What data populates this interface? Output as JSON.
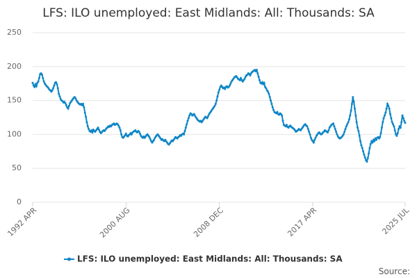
{
  "chart_data": {
    "type": "line",
    "title": "LFS: ILO unemployed: East Midlands: All: Thousands: SA",
    "source": "Source:",
    "categories": [
      "1992 APR",
      null,
      null,
      null,
      null,
      null,
      null,
      null,
      null,
      null,
      null,
      null,
      null,
      null,
      null,
      null,
      null,
      null,
      null,
      null,
      null,
      null,
      null,
      null,
      null,
      null,
      null,
      null,
      null,
      null,
      null,
      null,
      null,
      null,
      null,
      null,
      null,
      null,
      null,
      null,
      null,
      null,
      null,
      null,
      null,
      null,
      null,
      null,
      null,
      null,
      null,
      null,
      null,
      null,
      null,
      null,
      null,
      null,
      null,
      null,
      null,
      null,
      null,
      null,
      null,
      null,
      null,
      null,
      null,
      null,
      null,
      null,
      null,
      null,
      null,
      null,
      null,
      null,
      null,
      null,
      null,
      null,
      null,
      null,
      null,
      null,
      null,
      null,
      null,
      null,
      null,
      null,
      null,
      null,
      null,
      null,
      null,
      null,
      null,
      null,
      "2000 AUG",
      null,
      null,
      null,
      null,
      null,
      null,
      null,
      null,
      null,
      null,
      null,
      null,
      null,
      null,
      null,
      null,
      null,
      null,
      null,
      null,
      null,
      null,
      null,
      null,
      null,
      null,
      null,
      null,
      null,
      null,
      null,
      null,
      null,
      null,
      null,
      null,
      null,
      null,
      null,
      null,
      null,
      null,
      null,
      null,
      null,
      null,
      null,
      null,
      null,
      null,
      null,
      null,
      null,
      null,
      null,
      null,
      null,
      null,
      null,
      null,
      null,
      null,
      null,
      null,
      null,
      null,
      null,
      null,
      null,
      null,
      null,
      null,
      null,
      null,
      null,
      null,
      null,
      null,
      null,
      null,
      null,
      null,
      null,
      null,
      null,
      null,
      null,
      null,
      null,
      null,
      null,
      null,
      null,
      null,
      null,
      null,
      null,
      null,
      null,
      "2008 DEC",
      null,
      null,
      null,
      null,
      null,
      null,
      null,
      null,
      null,
      null,
      null,
      null,
      null,
      null,
      null,
      null,
      null,
      null,
      null,
      null,
      null,
      null,
      null,
      null,
      null,
      null,
      null,
      null,
      null,
      null,
      null,
      null,
      null,
      null,
      null,
      null,
      null,
      null,
      null,
      null,
      null,
      null,
      null,
      null,
      null,
      null,
      null,
      null,
      null,
      null,
      null,
      null,
      null,
      null,
      null,
      null,
      null,
      null,
      null,
      null,
      null,
      null,
      null,
      null,
      null,
      null,
      null,
      null,
      null,
      null,
      null,
      null,
      null,
      null,
      null,
      null,
      null,
      null,
      null,
      null,
      null,
      null,
      null,
      null,
      null,
      null,
      null,
      null,
      null,
      null,
      null,
      null,
      null,
      null,
      null,
      null,
      null,
      null,
      null,
      "2017 APR",
      null,
      null,
      null,
      null,
      null,
      null,
      null,
      null,
      null,
      null,
      null,
      null,
      null,
      null,
      null,
      null,
      null,
      null,
      null,
      null,
      null,
      null,
      null,
      null,
      null,
      null,
      null,
      null,
      null,
      null,
      null,
      null,
      null,
      null,
      null,
      null,
      null,
      null,
      null,
      null,
      null,
      null,
      null,
      null,
      null,
      null,
      null,
      null,
      null,
      null,
      null,
      null,
      null,
      null,
      null,
      null,
      null,
      null,
      null,
      null,
      null,
      null,
      null,
      null,
      null,
      null,
      null,
      null,
      null,
      null,
      null,
      null,
      null,
      null,
      null,
      null,
      null,
      null,
      null,
      null,
      null,
      null,
      null,
      null,
      null,
      null,
      null,
      null,
      null,
      null,
      null,
      null,
      null,
      null,
      null,
      null,
      null,
      null,
      "2025 JUL"
    ],
    "series": [
      {
        "name": "LFS: ILO unemployed: East Midlands: All: Thousands: SA",
        "color": "#0f86c6",
        "values": [
          176,
          172,
          170,
          174,
          171,
          176,
          178,
          183,
          189,
          190,
          188,
          183,
          178,
          175,
          173,
          171,
          170,
          168,
          166,
          165,
          163,
          165,
          168,
          172,
          176,
          177,
          174,
          168,
          160,
          156,
          152,
          150,
          149,
          147,
          148,
          146,
          143,
          140,
          138,
          142,
          146,
          148,
          150,
          152,
          154,
          155,
          153,
          150,
          148,
          146,
          145,
          144,
          145,
          143,
          145,
          140,
          132,
          126,
          118,
          112,
          108,
          105,
          104,
          106,
          103,
          107,
          105,
          104,
          106,
          108,
          110,
          107,
          104,
          102,
          103,
          105,
          106,
          105,
          107,
          109,
          110,
          112,
          111,
          113,
          112,
          114,
          115,
          116,
          114,
          115,
          116,
          115,
          113,
          110,
          106,
          100,
          96,
          95,
          97,
          99,
          101,
          98,
          97,
          99,
          100,
          102,
          100,
          103,
          104,
          105,
          106,
          104,
          103,
          105,
          104,
          101,
          98,
          96,
          95,
          97,
          95,
          97,
          99,
          100,
          98,
          96,
          93,
          90,
          88,
          90,
          92,
          95,
          97,
          99,
          100,
          98,
          96,
          94,
          92,
          93,
          91,
          90,
          92,
          90,
          88,
          86,
          85,
          87,
          89,
          91,
          90,
          92,
          94,
          96,
          95,
          94,
          96,
          97,
          99,
          98,
          100,
          101,
          100,
          105,
          110,
          115,
          120,
          124,
          128,
          131,
          130,
          128,
          129,
          130,
          127,
          125,
          123,
          121,
          120,
          119,
          120,
          118,
          120,
          122,
          124,
          126,
          125,
          124,
          127,
          130,
          132,
          134,
          136,
          138,
          140,
          142,
          145,
          150,
          156,
          162,
          166,
          170,
          172,
          170,
          168,
          169,
          167,
          170,
          171,
          169,
          170,
          172,
          175,
          178,
          180,
          182,
          184,
          185,
          186,
          184,
          182,
          181,
          180,
          183,
          180,
          178,
          180,
          182,
          185,
          187,
          188,
          190,
          189,
          187,
          190,
          192,
          193,
          194,
          195,
          193,
          195,
          190,
          185,
          180,
          176,
          175,
          177,
          174,
          176,
          170,
          168,
          165,
          163,
          160,
          155,
          150,
          145,
          140,
          136,
          133,
          132,
          131,
          133,
          130,
          129,
          131,
          130,
          128,
          120,
          114,
          113,
          112,
          114,
          111,
          110,
          112,
          113,
          111,
          110,
          109,
          108,
          106,
          104,
          105,
          106,
          108,
          107,
          106,
          108,
          110,
          112,
          114,
          115,
          113,
          112,
          108,
          104,
          100,
          95,
          92,
          90,
          88,
          92,
          95,
          98,
          100,
          102,
          103,
          101,
          100,
          101,
          103,
          104,
          106,
          105,
          104,
          103,
          106,
          110,
          112,
          114,
          115,
          116,
          112,
          108,
          104,
          100,
          97,
          95,
          94,
          95,
          96,
          98,
          100,
          104,
          108,
          112,
          115,
          118,
          122,
          128,
          135,
          145,
          155,
          148,
          138,
          128,
          118,
          110,
          105,
          98,
          90,
          84,
          80,
          75,
          70,
          66,
          62,
          60,
          65,
          72,
          80,
          86,
          90,
          88,
          92,
          90,
          94,
          92,
          95,
          96,
          94,
          96,
          102,
          110,
          118,
          124,
          128,
          132,
          138,
          145,
          142,
          138,
          130,
          124,
          118,
          115,
          112,
          106,
          100,
          98,
          102,
          108,
          112,
          110,
          118,
          128,
          124,
          120,
          117
        ]
      }
    ],
    "ylim": [
      0,
      250
    ],
    "yticks": [
      0,
      50,
      100,
      150,
      200,
      250
    ],
    "grid": true
  }
}
